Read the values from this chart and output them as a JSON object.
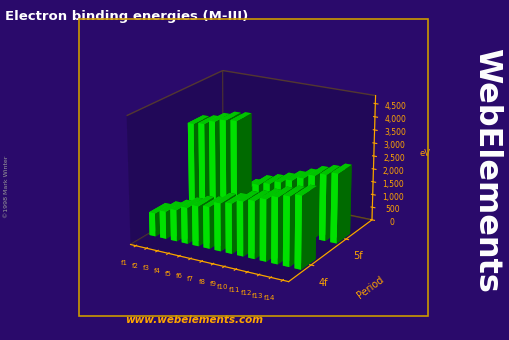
{
  "title": "Electron binding energies (M-III)",
  "zlabel": "eV",
  "ylabel": "Period",
  "background_color": "#2a0a6b",
  "text_color": "#ffa500",
  "bar_color": "#00ff00",
  "bar_color_dark": "#007700",
  "floor_color": "#4a4a5a",
  "categories_x": [
    "f1",
    "f2",
    "f3",
    "f4",
    "f5",
    "f6",
    "f7",
    "f8",
    "f9",
    "f10",
    "f11",
    "f12",
    "f13",
    "f14"
  ],
  "values_4f": [
    883,
    1036,
    1187,
    1362,
    1511,
    1576,
    1800,
    1881,
    2047,
    2156,
    2306,
    2469,
    2591,
    2708
  ],
  "values_5f": [
    3491,
    3562,
    3728,
    3850,
    3902,
    1383,
    1617,
    1741,
    1883,
    2040,
    2206,
    2389,
    2511,
    2644
  ],
  "website": "www.webelements.com",
  "copyright": "©1998 Mark Winter",
  "webelements_text": "WebElements",
  "ytick_values": [
    0,
    500,
    1000,
    1500,
    2000,
    2500,
    3000,
    3500,
    4000,
    4500
  ],
  "border_color": "#cc9900",
  "zmax": 4800,
  "elev": 20,
  "azim": -60
}
